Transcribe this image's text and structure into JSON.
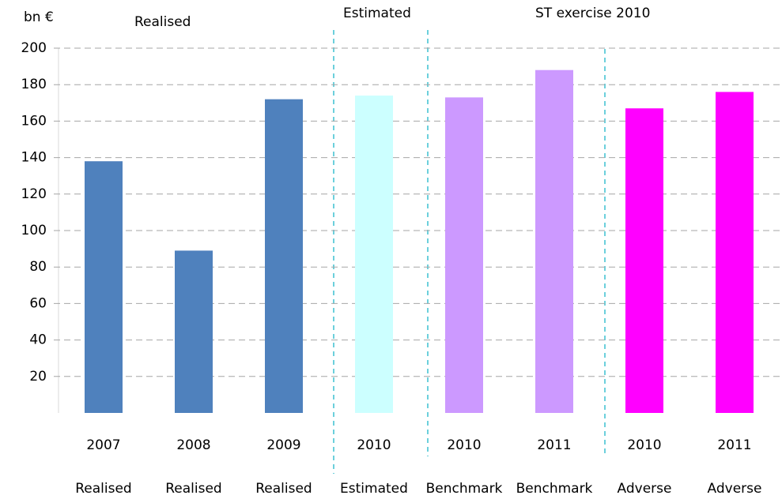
{
  "chart_data": {
    "type": "bar",
    "y_label": "bn €",
    "annotations": [
      "Realised",
      "Estimated",
      "ST exercise 2010"
    ],
    "categories": [
      "2007",
      "2008",
      "2009",
      "2010",
      "2010",
      "2011",
      "2010",
      "2011"
    ],
    "scenarios": [
      "Realised",
      "Realised",
      "Realised",
      "Estimated",
      "Benchmark",
      "Benchmark",
      "Adverse",
      "Adverse"
    ],
    "values": [
      138,
      89,
      172,
      174,
      173,
      188,
      167,
      176
    ],
    "colors": [
      "#4f81bd",
      "#4f81bd",
      "#4f81bd",
      "#ccffff",
      "#cc99ff",
      "#cc99ff",
      "#ff00ff",
      "#ff00ff"
    ],
    "ylim": [
      0,
      200
    ],
    "yticks": [
      20,
      40,
      60,
      80,
      100,
      120,
      140,
      160,
      180,
      200
    ],
    "grid": true
  }
}
